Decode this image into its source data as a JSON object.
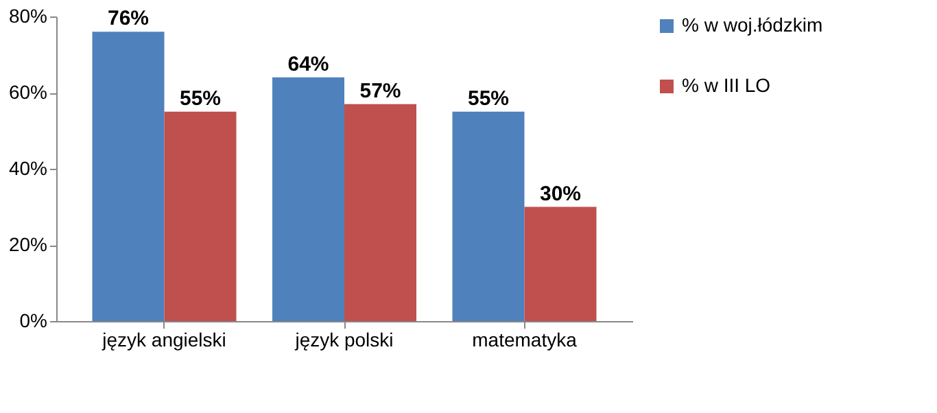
{
  "chart_data": {
    "type": "bar",
    "categories": [
      "język angielski",
      "język polski",
      "matematyka"
    ],
    "series": [
      {
        "name": "% w woj.łódzkim",
        "color": "#4f81bd",
        "values": [
          76,
          64,
          55
        ],
        "value_labels": [
          "76%",
          "64%",
          "55%"
        ]
      },
      {
        "name": "% w III  LO",
        "color": "#c0504d",
        "values": [
          55,
          57,
          30
        ],
        "value_labels": [
          "55%",
          "57%",
          "30%"
        ]
      }
    ],
    "ylim": [
      0,
      80
    ],
    "yticks": [
      {
        "value": 0,
        "label": "0%"
      },
      {
        "value": 20,
        "label": "20%"
      },
      {
        "value": 40,
        "label": "40%"
      },
      {
        "value": 60,
        "label": "60%"
      },
      {
        "value": 80,
        "label": "80%"
      }
    ],
    "grid": false,
    "legend": "right"
  }
}
